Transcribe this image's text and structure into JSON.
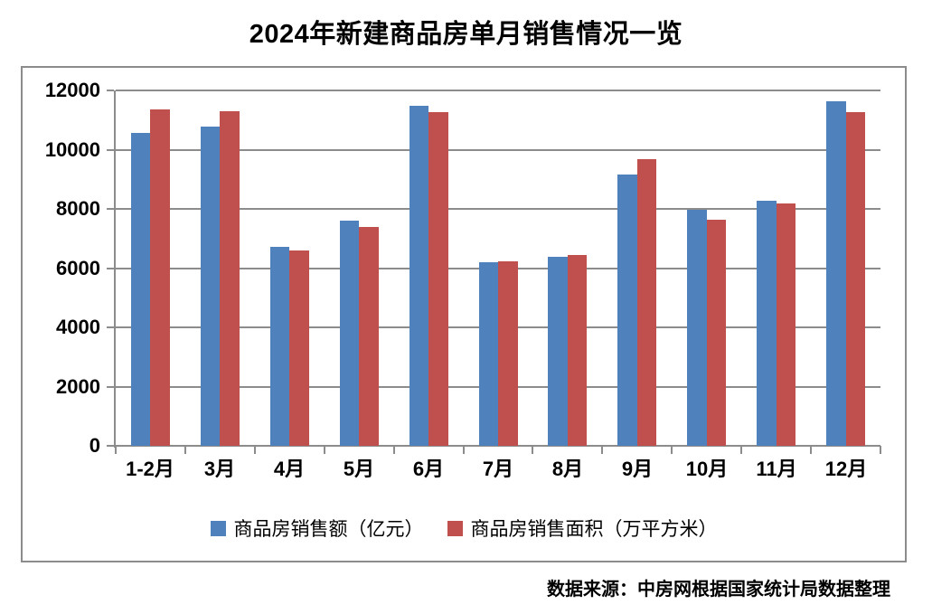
{
  "title": "2024年新建商品房单月销售情况一览",
  "source_note": "数据来源：中房网根据国家统计局数据整理",
  "colors": {
    "series_value_blue": "#4F81BD",
    "series_area_red": "#C0504D",
    "grid_and_border_gray": "#8C8C8C",
    "title_text": "#000000",
    "background": "#FFFFFF"
  },
  "chart_data": {
    "type": "bar",
    "title": "2024年新建商品房单月销售情况一览",
    "categories": [
      "1-2月",
      "3月",
      "4月",
      "5月",
      "6月",
      "7月",
      "8月",
      "9月",
      "10月",
      "11月",
      "12月"
    ],
    "series": [
      {
        "name": "商品房销售额（亿元）",
        "color": "#4F81BD",
        "values": [
          10566,
          10789,
          6712,
          7598,
          11468,
          6197,
          6393,
          9157,
          7975,
          8270,
          11625
        ]
      },
      {
        "name": "商品房销售面积（万平方米）",
        "color": "#C0504D",
        "values": [
          11369,
          11299,
          6584,
          7390,
          11274,
          6233,
          6453,
          9682,
          7646,
          8188,
          11267
        ]
      }
    ],
    "xlabel": "",
    "ylabel": "",
    "ylim": [
      0,
      12000
    ],
    "ytick_step": 2000,
    "ytick_labels": [
      "0",
      "2000",
      "4000",
      "6000",
      "8000",
      "10000",
      "12000"
    ],
    "grid": true,
    "legend_position": "bottom-inside",
    "source": "数据来源：中房网根据国家统计局数据整理"
  }
}
